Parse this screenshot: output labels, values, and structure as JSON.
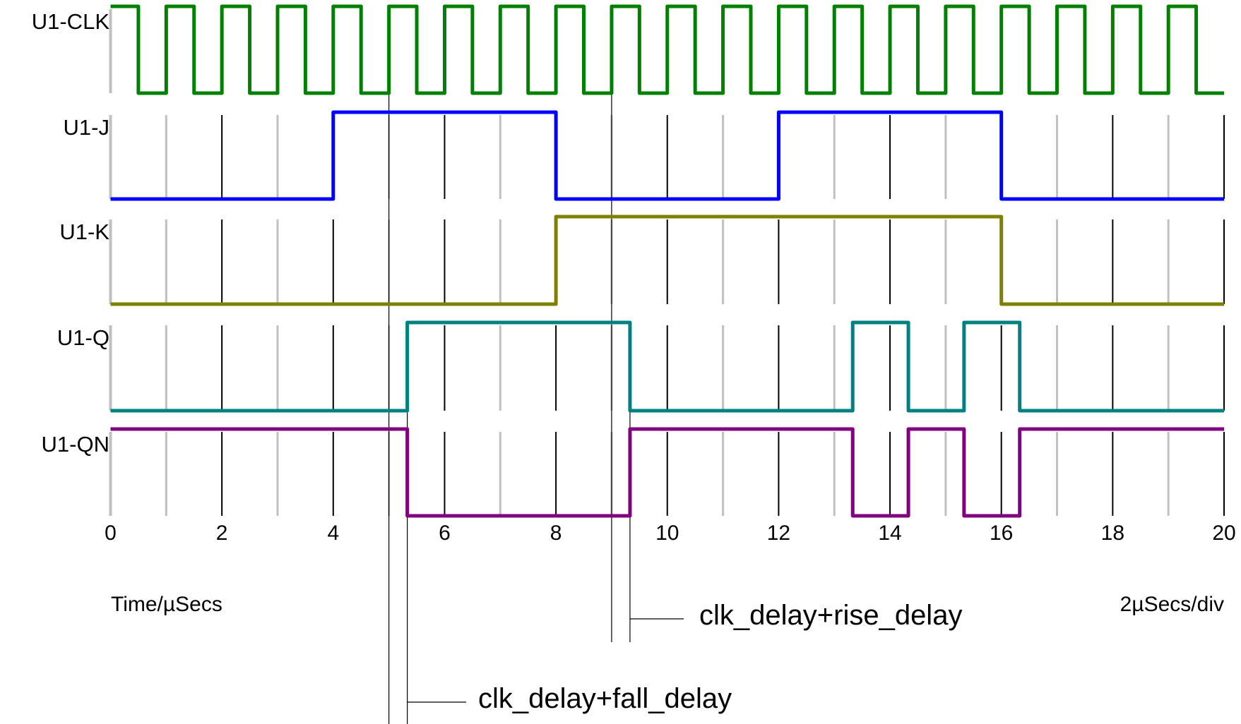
{
  "chart_data": {
    "type": "line",
    "xlabel": "Time/µSecs",
    "scale_label": "2µSecs/div",
    "xlim": [
      0,
      20
    ],
    "x_ticks": [
      "0",
      "2",
      "4",
      "6",
      "8",
      "10",
      "12",
      "14",
      "16",
      "18",
      "20"
    ],
    "grid": "vertical lines every 1 µs (grey at odd, black at even)",
    "series": [
      {
        "name": "U1-CLK",
        "color": "#008000",
        "clock_period": 1,
        "clock_high_time": 0.5,
        "initial": 1,
        "transitions": []
      },
      {
        "name": "U1-J",
        "color": "#0000ff",
        "initial": 0,
        "transitions": [
          4,
          8,
          12,
          16
        ]
      },
      {
        "name": "U1-K",
        "color": "#808000",
        "initial": 0,
        "transitions": [
          8,
          16
        ]
      },
      {
        "name": "U1-Q",
        "color": "#008080",
        "initial": 0,
        "transitions": [
          5.33,
          9.33,
          13.33,
          14.33,
          15.33,
          16.33
        ]
      },
      {
        "name": "U1-QN",
        "color": "#800080",
        "initial": 1,
        "transitions": [
          5.33,
          9.33,
          13.33,
          14.33,
          15.33,
          16.33
        ]
      }
    ],
    "annotations": [
      {
        "text": "clk_delay+fall_delay",
        "from": 5.0,
        "to": 5.33
      },
      {
        "text": "clk_delay+rise_delay",
        "from": 9.0,
        "to": 9.33
      }
    ]
  }
}
